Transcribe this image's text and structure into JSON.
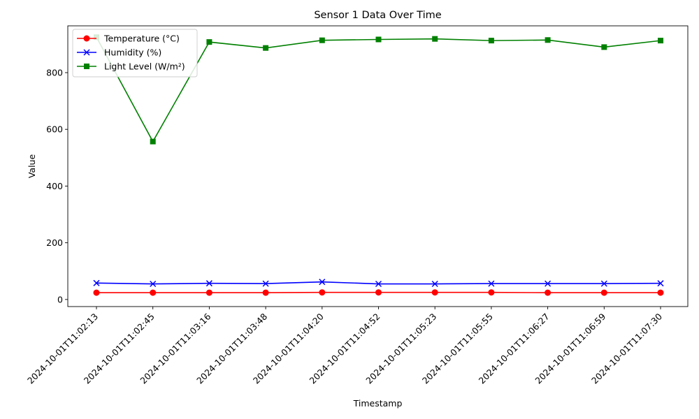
{
  "chart_data": {
    "type": "line",
    "title": "Sensor 1 Data Over Time",
    "xlabel": "Timestamp",
    "ylabel": "Value",
    "categories": [
      "2024-10-01T11:02:13",
      "2024-10-01T11:02:45",
      "2024-10-01T11:03:16",
      "2024-10-01T11:03:48",
      "2024-10-01T11:04:20",
      "2024-10-01T11:04:52",
      "2024-10-01T11:05:23",
      "2024-10-01T11:05:55",
      "2024-10-01T11:06:27",
      "2024-10-01T11:06:59",
      "2024-10-01T11:07:30"
    ],
    "ylim": [
      -25,
      965
    ],
    "yticks": [
      0,
      200,
      400,
      600,
      800
    ],
    "grid": false,
    "legend_position": "top-left",
    "series": [
      {
        "name": "Temperature (°C)",
        "color": "#ff0000",
        "marker": "circle",
        "values": [
          24,
          24,
          24,
          24,
          25,
          25,
          25,
          25,
          24,
          24,
          24
        ]
      },
      {
        "name": "Humidity (%)",
        "color": "#0000ff",
        "marker": "x",
        "values": [
          58,
          55,
          57,
          56,
          62,
          55,
          55,
          56,
          56,
          56,
          57
        ]
      },
      {
        "name": "Light Level (W/m²)",
        "color": "#008000",
        "marker": "square",
        "values": [
          925,
          557,
          908,
          887,
          914,
          917,
          919,
          913,
          915,
          890,
          913
        ]
      }
    ]
  }
}
